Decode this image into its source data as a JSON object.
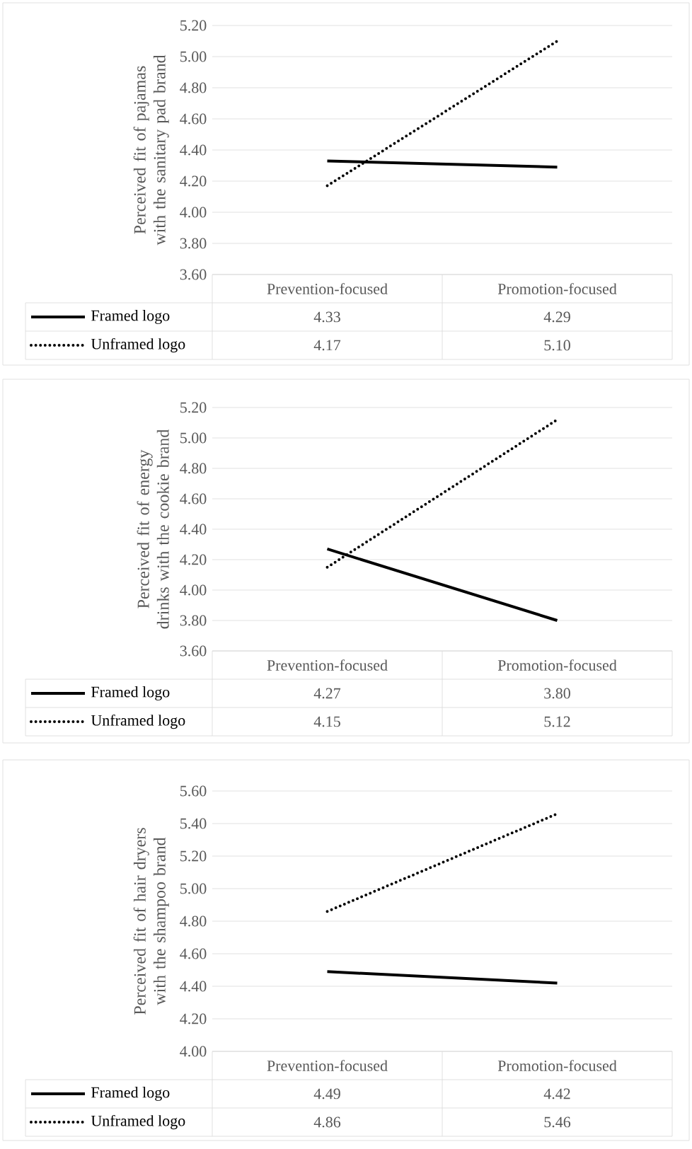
{
  "chart_data": [
    {
      "type": "line",
      "ylabel": "Perceived fit of pajamas with the sanitary pad brand",
      "categories": [
        "Prevention-focused",
        "Promotion-focused"
      ],
      "series": [
        {
          "name": "Framed logo",
          "color": "#000000",
          "line_style": "solid",
          "values": [
            4.33,
            4.29
          ],
          "value_labels": [
            "4.33",
            "4.29"
          ]
        },
        {
          "name": "Unframed logo",
          "color": "#000000",
          "line_style": "dotted",
          "values": [
            4.17,
            5.1
          ],
          "value_labels": [
            "4.17",
            "5.10"
          ]
        }
      ],
      "ylim": [
        3.6,
        5.2
      ],
      "yticks": [
        {
          "value": 3.6,
          "label": "3.60"
        },
        {
          "value": 3.8,
          "label": "3.80"
        },
        {
          "value": 4.0,
          "label": "4.00"
        },
        {
          "value": 4.2,
          "label": "4.20"
        },
        {
          "value": 4.4,
          "label": "4.40"
        },
        {
          "value": 4.6,
          "label": "4.60"
        },
        {
          "value": 4.8,
          "label": "4.80"
        },
        {
          "value": 5.0,
          "label": "5.00"
        },
        {
          "value": 5.2,
          "label": "5.20"
        }
      ],
      "grid": "y",
      "legend": "bottom",
      "marker": "none"
    },
    {
      "type": "line",
      "ylabel": "Perceived fit of energy drinks with the cookie brand",
      "categories": [
        "Prevention-focused",
        "Promotion-focused"
      ],
      "series": [
        {
          "name": "Framed logo",
          "color": "#000000",
          "line_style": "solid",
          "values": [
            4.27,
            3.8
          ],
          "value_labels": [
            "4.27",
            "3.80"
          ]
        },
        {
          "name": "Unframed logo",
          "color": "#000000",
          "line_style": "dotted",
          "values": [
            4.15,
            5.12
          ],
          "value_labels": [
            "4.15",
            "5.12"
          ]
        }
      ],
      "ylim": [
        3.6,
        5.2
      ],
      "yticks": [
        {
          "value": 3.6,
          "label": "3.60"
        },
        {
          "value": 3.8,
          "label": "3.80"
        },
        {
          "value": 4.0,
          "label": "4.00"
        },
        {
          "value": 4.2,
          "label": "4.20"
        },
        {
          "value": 4.4,
          "label": "4.40"
        },
        {
          "value": 4.6,
          "label": "4.60"
        },
        {
          "value": 4.8,
          "label": "4.80"
        },
        {
          "value": 5.0,
          "label": "5.00"
        },
        {
          "value": 5.2,
          "label": "5.20"
        }
      ],
      "grid": "y",
      "legend": "bottom",
      "marker": "none"
    },
    {
      "type": "line",
      "ylabel": "Perceived fit of hair dryers with the shampoo brand",
      "categories": [
        "Prevention-focused",
        "Promotion-focused"
      ],
      "series": [
        {
          "name": "Framed logo",
          "color": "#000000",
          "line_style": "solid",
          "values": [
            4.49,
            4.42
          ],
          "value_labels": [
            "4.49",
            "4.42"
          ]
        },
        {
          "name": "Unframed logo",
          "color": "#000000",
          "line_style": "dotted",
          "values": [
            4.86,
            5.46
          ],
          "value_labels": [
            "4.86",
            "5.46"
          ]
        }
      ],
      "ylim": [
        4.0,
        5.6
      ],
      "yticks": [
        {
          "value": 4.0,
          "label": "4.00"
        },
        {
          "value": 4.2,
          "label": "4.20"
        },
        {
          "value": 4.4,
          "label": "4.40"
        },
        {
          "value": 4.6,
          "label": "4.60"
        },
        {
          "value": 4.8,
          "label": "4.80"
        },
        {
          "value": 5.0,
          "label": "5.00"
        },
        {
          "value": 5.2,
          "label": "5.20"
        },
        {
          "value": 5.4,
          "label": "5.40"
        },
        {
          "value": 5.6,
          "label": "5.60"
        }
      ],
      "grid": "y",
      "legend": "bottom",
      "marker": "none"
    }
  ]
}
